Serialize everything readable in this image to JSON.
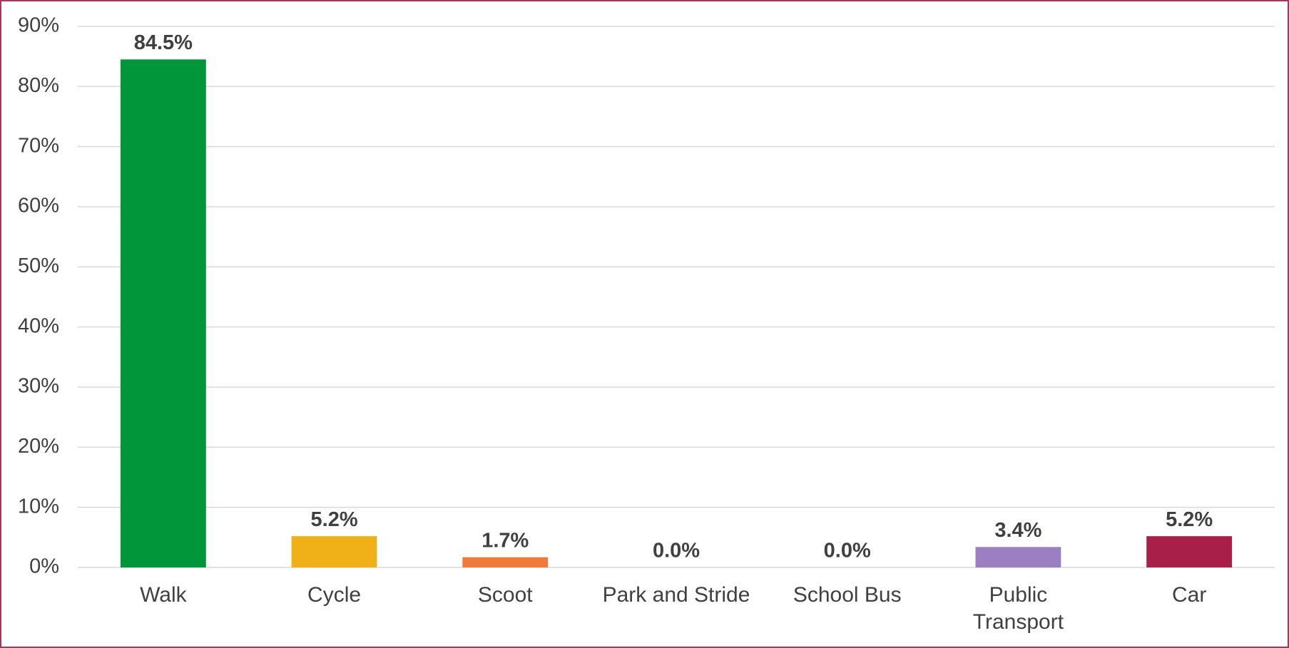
{
  "chart_data": {
    "type": "bar",
    "categories": [
      "Walk",
      "Cycle",
      "Scoot",
      "Park and Stride",
      "School Bus",
      "Public Transport",
      "Car"
    ],
    "values": [
      84.5,
      5.2,
      1.7,
      0.0,
      0.0,
      3.4,
      5.2
    ],
    "value_labels": [
      "84.5%",
      "5.2%",
      "1.7%",
      "0.0%",
      "0.0%",
      "3.4%",
      "5.2%"
    ],
    "colors": [
      "#009639",
      "#f0b018",
      "#ef7a3a",
      "#7f7f7f",
      "#7f7f7f",
      "#9b7fc0",
      "#a8204a"
    ],
    "ylim": [
      0,
      90
    ],
    "yticks": [
      {
        "value": 0,
        "label": "0%"
      },
      {
        "value": 10,
        "label": "10%"
      },
      {
        "value": 20,
        "label": "20%"
      },
      {
        "value": 30,
        "label": "30%"
      },
      {
        "value": 40,
        "label": "40%"
      },
      {
        "value": 50,
        "label": "50%"
      },
      {
        "value": 60,
        "label": "60%"
      },
      {
        "value": 70,
        "label": "70%"
      },
      {
        "value": 80,
        "label": "80%"
      },
      {
        "value": 90,
        "label": "90%"
      }
    ],
    "grid": true
  }
}
